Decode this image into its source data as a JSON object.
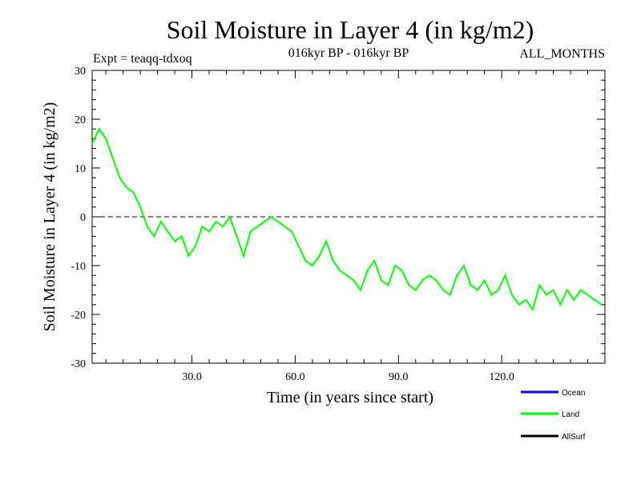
{
  "chart_data": {
    "type": "line",
    "title": "Soil Moisture in Layer 4 (in kg/m2)",
    "subtitle_left": "Expt = teaqq-tdxoq",
    "subtitle_center": "016kyr BP - 016kyr BP",
    "subtitle_right": "ALL_MONTHS",
    "xlabel": "Time (in years since start)",
    "ylabel": "Soil Moisture in Layer 4 (in kg/m2)",
    "xlim": [
      1,
      150
    ],
    "ylim": [
      -30,
      30
    ],
    "xticks": [
      30,
      60,
      90,
      120
    ],
    "xtick_labels": [
      "30.0",
      "60.0",
      "90.0",
      "120.0"
    ],
    "yticks": [
      -30,
      -20,
      -10,
      0,
      10,
      20,
      30
    ],
    "ytick_labels": [
      "-30",
      "-20",
      "-10",
      "0",
      "10",
      "20",
      "30"
    ],
    "reference_line": {
      "y": 0,
      "style": "dashed"
    },
    "legend_position": "bottom-right",
    "legend": [
      {
        "name": "Ocean",
        "color": "#0000ff"
      },
      {
        "name": "Land",
        "color": "#00ff00"
      },
      {
        "name": "AllSurf",
        "color": "#000000"
      }
    ],
    "series": [
      {
        "name": "Land",
        "color": "#00ff00",
        "x": [
          1,
          3,
          5,
          7,
          9,
          11,
          13,
          15,
          17,
          19,
          21,
          23,
          25,
          27,
          29,
          31,
          33,
          35,
          37,
          39,
          41,
          43,
          45,
          47,
          49,
          51,
          53,
          55,
          57,
          59,
          61,
          63,
          65,
          67,
          69,
          71,
          73,
          75,
          77,
          79,
          81,
          83,
          85,
          87,
          89,
          91,
          93,
          95,
          97,
          99,
          101,
          103,
          105,
          107,
          109,
          111,
          113,
          115,
          117,
          119,
          121,
          123,
          125,
          127,
          129,
          131,
          133,
          135,
          137,
          139,
          141,
          143,
          145,
          147,
          149
        ],
        "values": [
          15,
          18,
          16,
          12,
          8,
          6,
          5,
          2,
          -2,
          -4,
          -1,
          -3,
          -5,
          -4,
          -8,
          -6,
          -2,
          -3,
          -1,
          -2,
          0,
          -4,
          -8,
          -3,
          -2,
          -1,
          0,
          -1,
          -2,
          -3,
          -6,
          -9,
          -10,
          -8,
          -5,
          -9,
          -11,
          -12,
          -13,
          -15,
          -11,
          -9,
          -13,
          -14,
          -10,
          -11,
          -14,
          -15,
          -13,
          -12,
          -13,
          -15,
          -16,
          -12,
          -10,
          -14,
          -15,
          -13,
          -16,
          -15,
          -12,
          -16,
          -18,
          -17,
          -19,
          -14,
          -16,
          -15,
          -18,
          -15,
          -17,
          -15,
          -16,
          -17,
          -18
        ]
      }
    ]
  }
}
